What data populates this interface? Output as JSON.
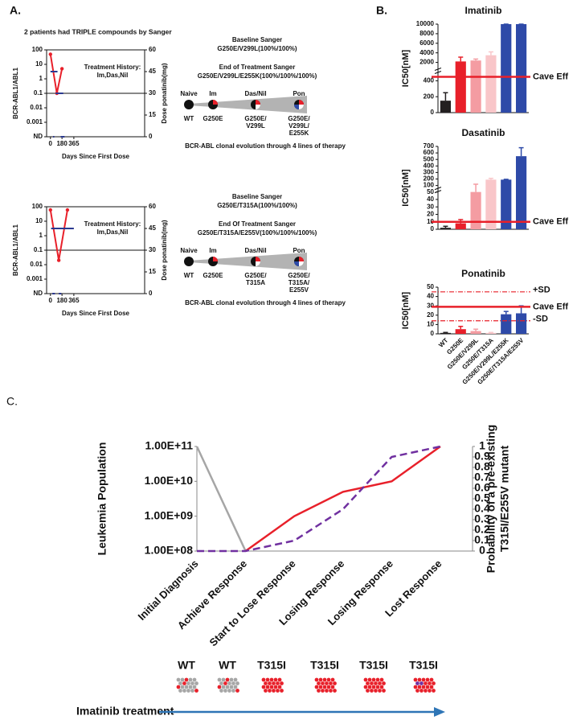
{
  "panel_labels": [
    "A.",
    "B.",
    "C."
  ],
  "panel_a": {
    "heading": "2 patients had TRIPLE compounds by Sanger",
    "patients": [
      {
        "baseline_title": "Baseline Sanger",
        "baseline": "G250E/V299L(100%/100%)",
        "end_title": "End of Treatment Sanger",
        "end": "G250E/V299L/E255K(100%/100%/100%)",
        "stages": [
          "Naive",
          "Im",
          "Das/Nil",
          "Pon"
        ],
        "clones": [
          [
            "WT"
          ],
          [
            "G250E"
          ],
          [
            "G250E/",
            "V299L"
          ],
          [
            "G250E/",
            "V299L/",
            "E255K"
          ]
        ],
        "caption": "BCR-ABL clonal evolution through 4 lines of therapy"
      },
      {
        "baseline_title": "Baseline Sanger",
        "baseline": "G250E/T315A(100%/100%)",
        "end_title": "End Of Treatment Sanger",
        "end": "G250E/T315A/E255V(100%/100%/100%)",
        "stages": [
          "Naive",
          "Im",
          "Das/Nil",
          "Pon"
        ],
        "clones": [
          [
            "WT"
          ],
          [
            "G250E"
          ],
          [
            "G250E/",
            "T315A"
          ],
          [
            "G250E/",
            "T315A/",
            "E255V"
          ]
        ],
        "caption": "BCR-ABL clonal evolution through 4 lines of therapy"
      }
    ]
  },
  "chart_data": [
    {
      "type": "line",
      "ylabel": "BCR-ABL1/ABL1",
      "y2label": "Dose ponatinib(mg)",
      "xlabel": "Days Since First Dose",
      "annotation": [
        "Treatment History:",
        "Im,Das,Nil"
      ],
      "log_y": true,
      "xlim": [
        -60,
        1470
      ],
      "xticks": [
        0,
        180,
        365
      ],
      "ylim": [
        0.0001,
        100
      ],
      "yticks": [
        {
          "value": 0.0001,
          "label": "ND"
        },
        0.001,
        0.01,
        0.1,
        1,
        10,
        100
      ],
      "y2lim": [
        0,
        60
      ],
      "y2ticks": [
        0,
        15,
        30,
        45,
        60
      ],
      "hline": 0.1,
      "series": [
        {
          "color": "#e8202a",
          "markers": true,
          "x": [
            0,
            100,
            180
          ],
          "values": [
            50,
            0.1,
            5
          ]
        },
        {
          "color": "#2b3990",
          "axis": "y2",
          "x": [
            0,
            110
          ],
          "values": [
            45,
            45
          ]
        },
        {
          "color": "#2b3990",
          "axis": "y2",
          "x": [
            80,
            200
          ],
          "values": [
            30,
            30
          ]
        },
        {
          "color": "#2b3990",
          "axis": "y2",
          "x": [
            40,
            60
          ],
          "values": [
            0,
            0
          ]
        },
        {
          "color": "#2b3990",
          "axis": "y2",
          "x": [
            160,
            220
          ],
          "values": [
            0,
            0
          ]
        }
      ]
    },
    {
      "type": "line",
      "ylabel": "BCR-ABL1/ABL1",
      "y2label": "Dose ponatinib(mg)",
      "xlabel": "Days Since First Dose",
      "annotation": [
        "Treatment History:",
        "Im,Das,Nil"
      ],
      "log_y": true,
      "xlim": [
        -60,
        1470
      ],
      "xticks": [
        0,
        180,
        365
      ],
      "ylim": [
        0.0001,
        100
      ],
      "yticks": [
        {
          "value": 0.0001,
          "label": "ND"
        },
        0.001,
        0.01,
        0.1,
        1,
        10,
        100
      ],
      "y2lim": [
        0,
        60
      ],
      "y2ticks": [
        0,
        15,
        30,
        45,
        60
      ],
      "hline": 0.1,
      "series": [
        {
          "color": "#e8202a",
          "markers": true,
          "x": [
            0,
            130,
            265
          ],
          "values": [
            60,
            0.02,
            60
          ]
        },
        {
          "color": "#2b3990",
          "axis": "y2",
          "x": [
            10,
            365
          ],
          "values": [
            45,
            45
          ]
        },
        {
          "color": "#2b3990",
          "axis": "y2",
          "x": [
            30,
            70
          ],
          "values": [
            0,
            0
          ]
        },
        {
          "color": "#2b3990",
          "axis": "y2",
          "x": [
            130,
            170
          ],
          "values": [
            0,
            0
          ]
        }
      ]
    },
    {
      "type": "bar",
      "title": "Imatinib",
      "ylabel": "IC50[nM]",
      "ylim": [
        0,
        10000
      ],
      "ybreak": 500,
      "yticks": [
        0,
        200,
        400,
        2000,
        4000,
        6000,
        8000,
        10000
      ],
      "values": [
        150,
        2200,
        2400,
        3500,
        10000,
        10000
      ],
      "errors": [
        100,
        900,
        300,
        700,
        0,
        0
      ],
      "colors": [
        "#231f20",
        "#e8202a",
        "#f49ca2",
        "#f9c6c9",
        "#2e4aa8",
        "#2e4aa8"
      ],
      "refs": [
        {
          "value": 450,
          "label": "Cave Eff",
          "style": "solid"
        }
      ]
    },
    {
      "type": "bar",
      "title": "Dasatinib",
      "ylabel": "IC50[nM]",
      "ylim": [
        0,
        700
      ],
      "ybreak": 50,
      "yticks": [
        0,
        10,
        20,
        30,
        40,
        50,
        100,
        200,
        300,
        400,
        500,
        600,
        700
      ],
      "values": [
        2,
        8,
        50,
        190,
        190,
        550
      ],
      "errors": [
        2,
        5,
        70,
        20,
        5,
        130
      ],
      "colors": [
        "#231f20",
        "#e8202a",
        "#f49ca2",
        "#f9c6c9",
        "#2e4aa8",
        "#2e4aa8"
      ],
      "refs": [
        {
          "value": 10,
          "label": "Cave Eff",
          "style": "solid"
        }
      ]
    },
    {
      "type": "bar",
      "title": "Ponatinib",
      "ylabel": "IC50[nM]",
      "ylim": [
        0,
        50
      ],
      "yticks": [
        0,
        10,
        20,
        30,
        40,
        50
      ],
      "categories": [
        "WT",
        "G250E",
        "G250E/V299L",
        "G250E/T315A",
        "G250E/V299L/E255K",
        "G250E/T315A/E255V"
      ],
      "values": [
        1,
        5,
        3,
        1,
        21,
        22
      ],
      "errors": [
        0.5,
        3,
        2,
        0.5,
        3,
        8
      ],
      "colors": [
        "#231f20",
        "#e8202a",
        "#f49ca2",
        "#f9c6c9",
        "#2e4aa8",
        "#2e4aa8"
      ],
      "refs": [
        {
          "value": 45,
          "label": "+SD",
          "style": "dashdot"
        },
        {
          "value": 29,
          "label": "Cave Eff",
          "style": "solid"
        },
        {
          "value": 14,
          "label": "-SD",
          "style": "dashdot"
        }
      ]
    },
    {
      "type": "line",
      "ylabel": "Leukemia Population",
      "y2label": [
        "Probability of a pre-existing",
        "T315I/E255V mutant"
      ],
      "categories": [
        "Initial Diagnosis",
        "Achieve Response",
        "Start to Lose Response",
        "Losing Response",
        "Losing Response",
        "Lost Response"
      ],
      "log_y": true,
      "ylim": [
        100000000,
        100000000000
      ],
      "yticks": [
        {
          "value": 100000000,
          "label": "1.00E+08"
        },
        {
          "value": 1000000000,
          "label": "1.00E+09"
        },
        {
          "value": 10000000000,
          "label": "1.00E+10"
        },
        {
          "value": 100000000000,
          "label": "1.00E+11"
        }
      ],
      "y2lim": [
        0,
        1
      ],
      "y2ticks": [
        0,
        0.1,
        0.2,
        0.3,
        0.4,
        0.5,
        0.6,
        0.7,
        0.8,
        0.9,
        1
      ],
      "series": [
        {
          "color": "#a6a6a6",
          "values": [
            100000000000,
            100000000,
            null,
            null,
            null,
            null
          ]
        },
        {
          "color": "#e8202a",
          "values": [
            null,
            100000000,
            1000000000,
            5000000000,
            10000000000,
            100000000000
          ]
        },
        {
          "color": "#7030a0",
          "axis": "y2",
          "dashed": true,
          "values": [
            0,
            0,
            0.1,
            0.4,
            0.9,
            1
          ]
        }
      ]
    }
  ],
  "panel_c": {
    "genotypes": [
      "WT",
      "WT",
      "T315I",
      "T315I",
      "T315I",
      "T315I"
    ],
    "treatment": "Imatinib treatment"
  }
}
